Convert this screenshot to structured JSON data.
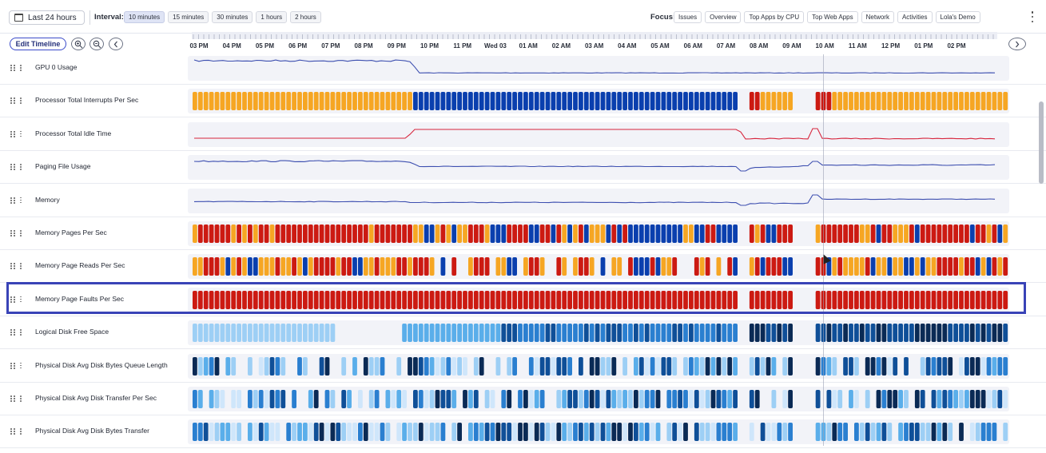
{
  "toolbar": {
    "range_label": "Last 24 hours",
    "interval_label": "Interval:",
    "intervals": [
      "10 minutes",
      "15 minutes",
      "30 minutes",
      "1 hours",
      "2 hours"
    ],
    "active_interval": "10 minutes",
    "focus_label": "Focus:",
    "focus_items": [
      "Issues",
      "Overview",
      "Top Apps by CPU",
      "Top Web Apps",
      "Network",
      "Activities",
      "Lola's Demo"
    ]
  },
  "timeline": {
    "edit_label": "Edit Timeline",
    "zoom_in_icon": "zoom-in-icon",
    "zoom_out_icon": "zoom-out-icon",
    "prev_icon": "chevron-left-icon",
    "next_icon": "chevron-right-icon",
    "time_labels": [
      "03 PM",
      "04 PM",
      "05 PM",
      "06 PM",
      "07 PM",
      "08 PM",
      "09 PM",
      "10 PM",
      "11 PM",
      "Wed 03",
      "01 AM",
      "02 AM",
      "03 AM",
      "04 AM",
      "05 AM",
      "06 AM",
      "07 AM",
      "08 AM",
      "09 AM",
      "10 AM",
      "11 AM",
      "12 PM",
      "01 PM",
      "02 PM"
    ]
  },
  "metrics": [
    {
      "name": "GPU 0 Usage",
      "kind": "line",
      "color": "#3d4fb0"
    },
    {
      "name": "Processor Total Interrupts Per Sec",
      "kind": "heat",
      "palette": "warm"
    },
    {
      "name": "Processor Total Idle Time",
      "kind": "line",
      "color": "#d7263d"
    },
    {
      "name": "Paging File Usage",
      "kind": "line",
      "color": "#3d4fb0"
    },
    {
      "name": "Memory",
      "kind": "line",
      "color": "#3d4fb0"
    },
    {
      "name": "Memory Pages Per Sec",
      "kind": "heat",
      "palette": "warm"
    },
    {
      "name": "Memory Page Reads Per Sec",
      "kind": "heat",
      "palette": "warm"
    },
    {
      "name": "Memory Page Faults Per Sec",
      "kind": "heat",
      "palette": "warm",
      "selected": true
    },
    {
      "name": "Logical Disk Free Space",
      "kind": "heat",
      "palette": "blue"
    },
    {
      "name": "Physical Disk Avg Disk Bytes Queue Length",
      "kind": "heat",
      "palette": "blue"
    },
    {
      "name": "Physical Disk Avg Disk Transfer Per Sec",
      "kind": "heat",
      "palette": "blue"
    },
    {
      "name": "Physical Disk Avg Disk Bytes Transfer",
      "kind": "heat",
      "palette": "blue"
    }
  ],
  "colors": {
    "warm_red": "#cc1a12",
    "warm_orange": "#f6a623",
    "warm_blue": "#0a3fae",
    "blue_scale": [
      "#cfe6fb",
      "#9dcff5",
      "#5aaeea",
      "#2a7fd0",
      "#0f4f98",
      "#0a2a55"
    ],
    "highlight": "#3943b7"
  }
}
